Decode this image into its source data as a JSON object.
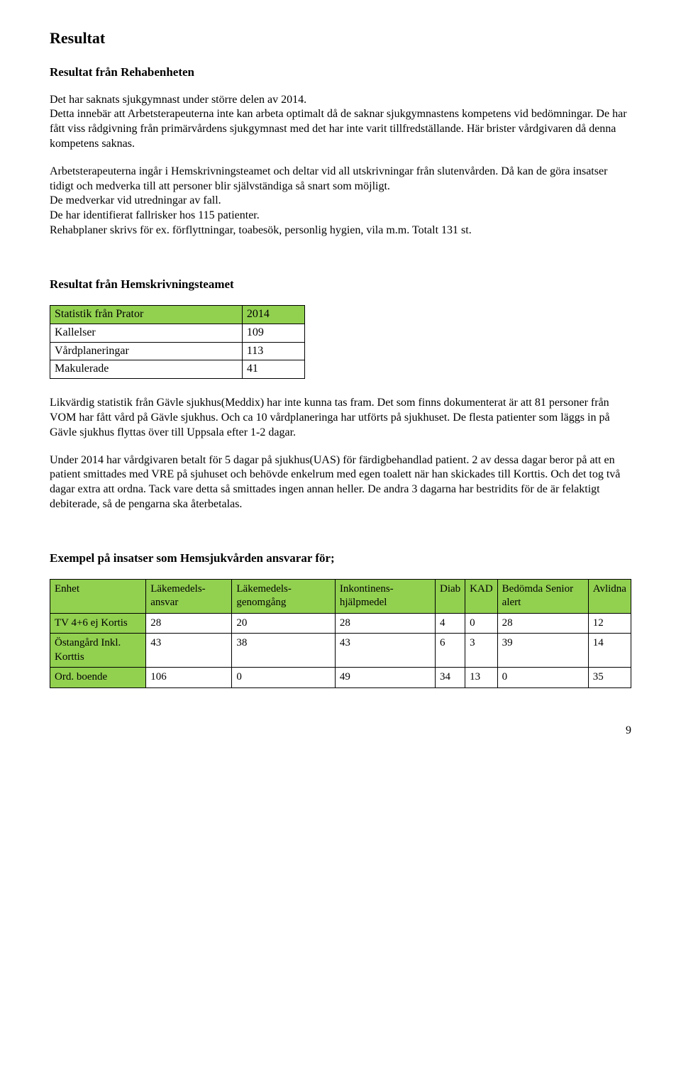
{
  "heading_main": "Resultat",
  "section1": {
    "title": "Resultat från Rehabenheten",
    "p1": "Det har saknats sjukgymnast under större delen av 2014.",
    "p2": "Detta innebär att Arbetsterapeuterna inte kan arbeta optimalt då de saknar sjukgymnastens kompetens vid bedömningar. De har fått viss rådgivning från primärvårdens sjukgymnast med det har inte varit tillfredställande. Här brister vårdgivaren då denna kompetens saknas.",
    "p3": "Arbetsterapeuterna ingår i Hemskrivningsteamet och deltar vid all utskrivningar från slutenvården. Då kan de göra insatser tidigt och medverka till att personer blir självständiga så snart som möjligt.",
    "p4": "De medverkar vid utredningar av fall.",
    "p5": "De har identifierat fallrisker hos 115 patienter.",
    "p6": "Rehabplaner skrivs för ex. förflyttningar, toabesök, personlig hygien, vila m.m. Totalt 131 st."
  },
  "section2": {
    "title": "Resultat från Hemskrivningsteamet",
    "table": {
      "header_bg": "#92d050",
      "border_color": "#000000",
      "columns": [
        "Statistik från Prator",
        "2014"
      ],
      "rows": [
        [
          "Kallelser",
          "109"
        ],
        [
          "Vårdplaneringar",
          "113"
        ],
        [
          "Makulerade",
          "41"
        ]
      ]
    },
    "p1": "Likvärdig statistik från Gävle sjukhus(Meddix) har inte kunna tas fram. Det som finns dokumenterat är att 81 personer från VOM har fått vård på Gävle sjukhus. Och ca 10 vårdplaneringa har utförts på sjukhuset. De flesta patienter som läggs in på Gävle sjukhus flyttas över till Uppsala efter 1-2 dagar.",
    "p2": "Under 2014 har vårdgivaren betalt för 5 dagar på sjukhus(UAS) för färdigbehandlad patient. 2 av dessa dagar beror på att en patient smittades med VRE på sjuhuset och behövde enkelrum med egen toalett när han skickades till Korttis. Och det tog två dagar extra att ordna. Tack vare detta så smittades ingen annan heller. De andra 3 dagarna har bestridits för de är felaktigt debiterade, så de pengarna ska återbetalas."
  },
  "section3": {
    "title": "Exempel på insatser som Hemsjukvården ansvarar för;",
    "table": {
      "header_bg": "#92d050",
      "border_color": "#000000",
      "columns": [
        "Enhet",
        "Läkemedels-ansvar",
        "Läkemedels-genomgång",
        "Inkontinens-hjälpmedel",
        "Diab",
        "KAD",
        "Bedömda Senior alert",
        "Avlidna"
      ],
      "rows": [
        {
          "label": "TV 4+6 ej Kortis",
          "cells": [
            "28",
            "20",
            "28",
            "4",
            "0",
            "28",
            "12"
          ]
        },
        {
          "label": "Östangård Inkl. Korttis",
          "cells": [
            "43",
            "38",
            "43",
            "6",
            "3",
            "39",
            "14"
          ],
          "label_small": true
        },
        {
          "label": "Ord. boende",
          "cells": [
            "106",
            "0",
            "49",
            "34",
            "13",
            "0",
            "35"
          ]
        }
      ]
    }
  },
  "page_number": "9"
}
